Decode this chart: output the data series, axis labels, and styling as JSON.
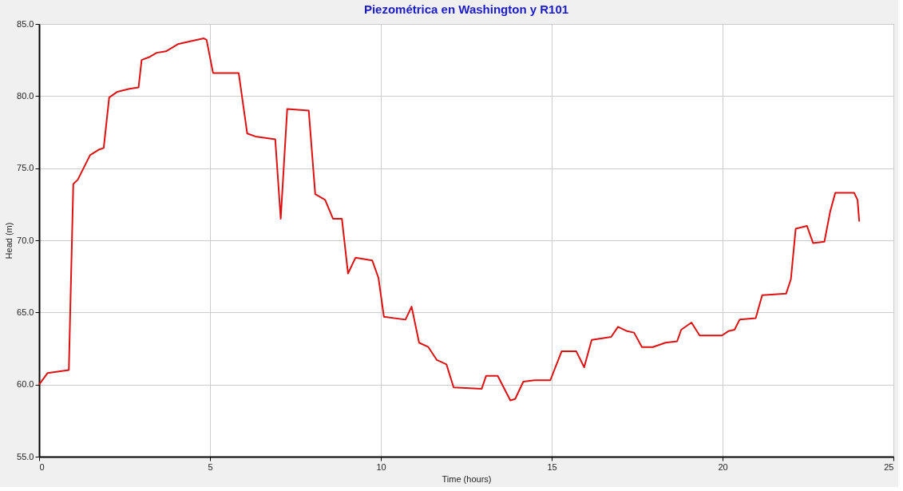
{
  "chart_data": {
    "type": "line",
    "title": "Piezométrica en Washington y R101",
    "xlabel": "Time (hours)",
    "ylabel": "Head (m)",
    "x": [
      0,
      0.25,
      0.87,
      1.0,
      1.13,
      1.49,
      1.76,
      1.89,
      2.05,
      2.29,
      2.64,
      2.91,
      3.0,
      3.22,
      3.44,
      3.71,
      4.06,
      4.42,
      4.82,
      4.9,
      5.09,
      5.84,
      6.09,
      6.33,
      6.91,
      7.07,
      7.26,
      7.89,
      8.08,
      8.37,
      8.6,
      8.86,
      9.04,
      9.26,
      9.75,
      9.93,
      10.09,
      10.72,
      10.9,
      11.12,
      11.39,
      11.64,
      11.92,
      12.13,
      12.95,
      13.08,
      13.42,
      13.79,
      13.93,
      14.17,
      14.5,
      14.96,
      15.29,
      15.72,
      15.95,
      16.17,
      16.74,
      16.94,
      17.21,
      17.41,
      17.64,
      17.96,
      18.33,
      18.67,
      18.79,
      19.09,
      19.33,
      19.98,
      20.17,
      20.35,
      20.5,
      20.97,
      21.16,
      21.86,
      22.0,
      22.14,
      22.47,
      22.65,
      22.98,
      23.15,
      23.3,
      23.85,
      23.95,
      24.0
    ],
    "series": [
      {
        "color": "#dd1111",
        "values": [
          60.0,
          60.8,
          61.0,
          73.9,
          74.2,
          75.9,
          76.3,
          76.4,
          79.9,
          80.3,
          80.5,
          80.6,
          82.5,
          82.7,
          83.0,
          83.1,
          83.6,
          83.8,
          84.0,
          83.9,
          81.6,
          81.6,
          77.4,
          77.2,
          77.0,
          71.5,
          79.1,
          79.0,
          73.2,
          72.8,
          71.5,
          71.5,
          67.7,
          68.8,
          68.6,
          67.4,
          64.7,
          64.5,
          65.4,
          62.9,
          62.6,
          61.7,
          61.4,
          59.8,
          59.7,
          60.6,
          60.6,
          58.9,
          59.0,
          60.2,
          60.3,
          60.3,
          62.3,
          62.3,
          61.2,
          63.1,
          63.3,
          64.0,
          63.7,
          63.6,
          62.6,
          62.6,
          62.9,
          63.0,
          63.8,
          64.3,
          63.4,
          63.4,
          63.7,
          63.8,
          64.5,
          64.6,
          66.2,
          66.3,
          67.3,
          70.8,
          71.0,
          69.8,
          69.9,
          72.0,
          73.3,
          73.3,
          72.8,
          71.3
        ]
      }
    ],
    "xlim": [
      0,
      25
    ],
    "xticks": [
      0,
      5,
      10,
      15,
      20,
      25
    ],
    "ylim": [
      55,
      85
    ],
    "yticks": [
      {
        "value": 55,
        "label": "55.0"
      },
      {
        "value": 60,
        "label": "60.0"
      },
      {
        "value": 65,
        "label": "65.0"
      },
      {
        "value": 70,
        "label": "70.0"
      },
      {
        "value": 75,
        "label": "75.0"
      },
      {
        "value": 80,
        "label": "80.0"
      },
      {
        "value": 85,
        "label": "85.0"
      }
    ],
    "grid": true,
    "marker": "none",
    "line_style": "solid"
  }
}
